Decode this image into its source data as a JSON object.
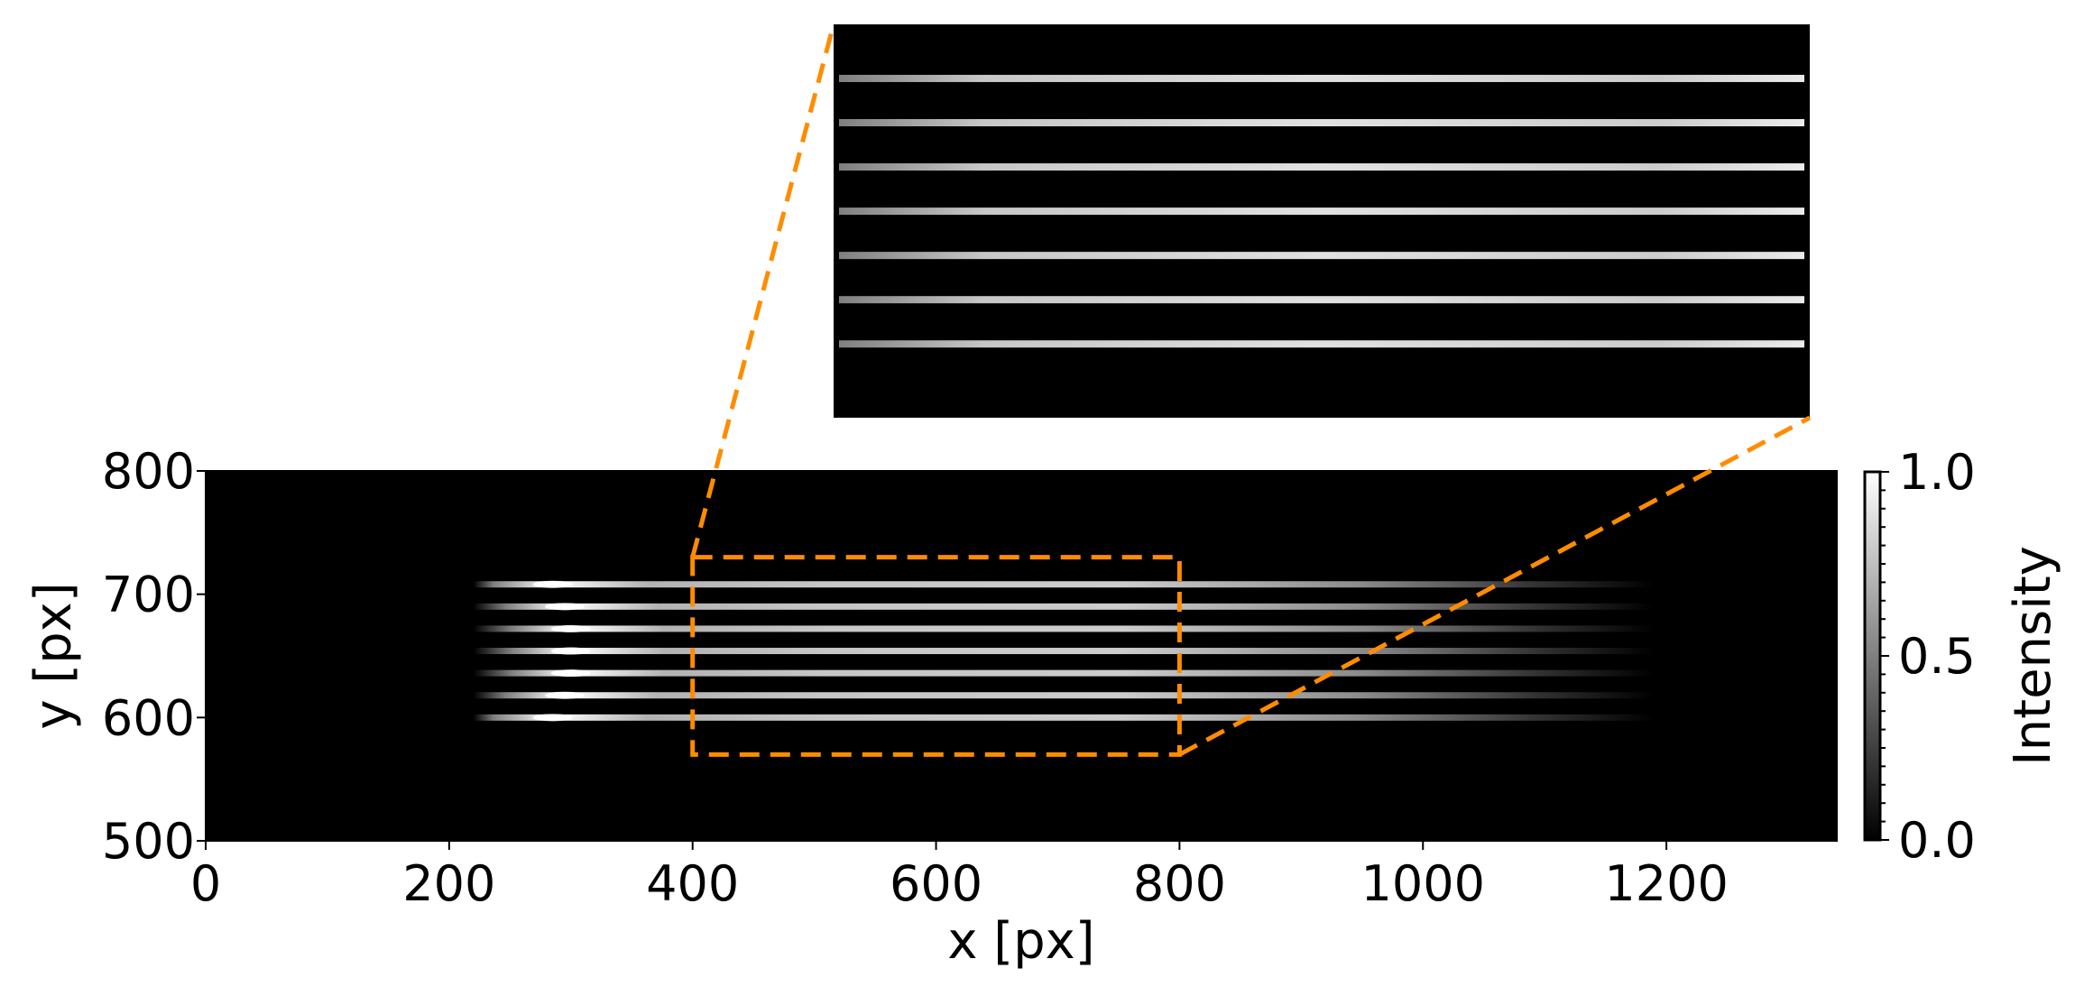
{
  "chart_data": {
    "type": "heatmap",
    "description_free": true,
    "xlabel": "x [px]",
    "ylabel": "y [px]",
    "xlim": [
      0,
      1340
    ],
    "ylim": [
      500,
      800
    ],
    "xticks": [
      0,
      200,
      400,
      600,
      800,
      1000,
      1200
    ],
    "yticks": [
      500,
      600,
      700,
      800
    ],
    "colormap": "gray",
    "colorbar": {
      "label": "Intensity",
      "range": [
        0.0,
        1.0
      ],
      "ticks": [
        "0.0",
        "0.5",
        "1.0"
      ]
    },
    "stripes": {
      "y_centers": [
        600,
        618,
        636,
        654,
        672,
        690,
        708
      ],
      "x_start": 220,
      "x_end": 1190,
      "peak_x": [
        285,
        295,
        300,
        300,
        300,
        295,
        285
      ],
      "peak_intensity": 1.0
    },
    "zoom_region": {
      "x": [
        400,
        800
      ],
      "y": [
        570,
        730
      ]
    },
    "colors": {
      "zoom_box": "#ff8c00",
      "background": "#000000"
    }
  }
}
